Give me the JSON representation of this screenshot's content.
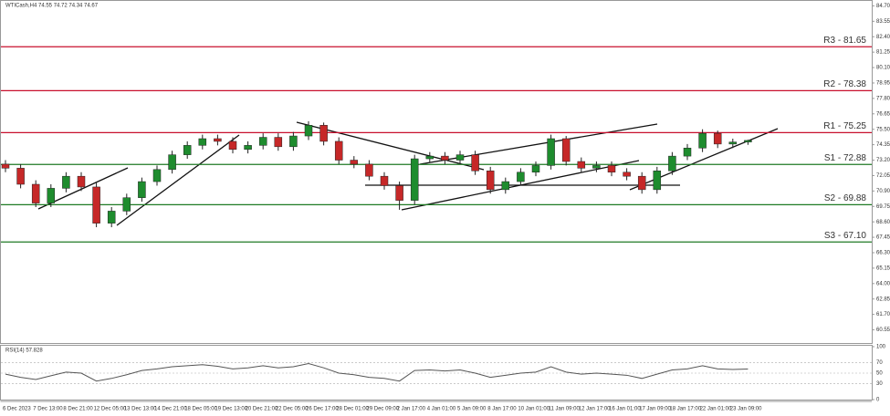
{
  "chart_data": [
    {
      "type": "candlestick",
      "title": "WTICash,H4 74.55 74.72 74.34 74.67",
      "categories": [
        "6 Dec 2023",
        null,
        "7 Dec 13:00",
        null,
        "8 Dec 21:00",
        null,
        "12 Dec 05:00",
        null,
        "13 Dec 13:00",
        null,
        "14 Dec 21:00",
        null,
        "18 Dec 05:00",
        null,
        "19 Dec 13:00",
        null,
        "20 Dec 21:00",
        null,
        "22 Dec 05:00",
        null,
        "26 Dec 17:00",
        null,
        "28 Dec 01:00",
        null,
        "29 Dec 09:00",
        null,
        "2 Jan 17:00",
        null,
        "4 Jan 01:00",
        null,
        "5 Jan 09:00",
        null,
        "8 Jan 17:00",
        null,
        "10 Jan 01:00",
        null,
        "11 Jan 09:00",
        null,
        "12 Jan 17:00",
        null,
        "16 Jan 01:00",
        null,
        "17 Jan 09:00",
        null,
        "18 Jan 17:00",
        null,
        "22 Jan 01:00",
        null,
        "23 Jan 09:00",
        null
      ],
      "open": [
        72.9,
        72.6,
        71.4,
        70.0,
        71.1,
        72.0,
        71.2,
        68.5,
        69.4,
        70.4,
        71.6,
        72.5,
        73.6,
        74.3,
        74.8,
        74.6,
        74.0,
        74.3,
        74.9,
        74.2,
        75.0,
        75.8,
        74.6,
        73.2,
        72.9,
        72.0,
        71.3,
        70.2,
        73.3,
        73.5,
        73.2,
        73.6,
        72.4,
        71.0,
        71.6,
        72.3,
        72.8,
        74.8,
        73.1,
        72.6,
        72.8,
        72.3,
        72.0,
        71.0,
        72.4,
        73.5,
        74.1,
        75.2,
        74.4,
        74.55
      ],
      "high": [
        73.2,
        72.9,
        71.7,
        71.4,
        72.3,
        72.3,
        71.5,
        69.7,
        70.7,
        71.9,
        72.8,
        73.9,
        74.6,
        75.1,
        75.1,
        74.9,
        74.6,
        75.2,
        75.2,
        75.3,
        76.1,
        76.0,
        74.9,
        73.5,
        73.2,
        72.3,
        71.6,
        73.6,
        73.8,
        73.8,
        73.9,
        73.9,
        72.7,
        71.9,
        72.6,
        73.1,
        75.1,
        75.0,
        73.4,
        73.1,
        73.1,
        72.6,
        72.3,
        72.7,
        73.8,
        74.4,
        75.5,
        75.4,
        74.8,
        74.72
      ],
      "low": [
        72.3,
        71.1,
        69.7,
        69.7,
        70.8,
        70.9,
        68.2,
        68.2,
        69.1,
        70.1,
        71.3,
        72.2,
        73.3,
        74.0,
        74.3,
        73.7,
        73.7,
        74.0,
        73.9,
        73.9,
        74.7,
        74.3,
        72.9,
        72.6,
        71.7,
        71.0,
        69.5,
        69.9,
        73.0,
        72.9,
        72.9,
        72.1,
        70.7,
        70.7,
        71.3,
        72.0,
        72.5,
        72.8,
        72.3,
        72.3,
        72.0,
        71.7,
        70.7,
        70.7,
        72.1,
        73.2,
        73.8,
        74.1,
        74.1,
        74.34
      ],
      "close": [
        72.6,
        71.4,
        70.0,
        71.1,
        72.0,
        71.2,
        68.5,
        69.4,
        70.4,
        71.6,
        72.5,
        73.6,
        74.3,
        74.8,
        74.6,
        74.0,
        74.3,
        74.9,
        74.2,
        75.0,
        75.8,
        74.6,
        73.2,
        72.9,
        72.0,
        71.3,
        70.2,
        73.3,
        73.5,
        73.2,
        73.6,
        72.4,
        71.0,
        71.6,
        72.3,
        72.8,
        74.8,
        73.1,
        72.6,
        72.8,
        72.3,
        72.0,
        71.0,
        72.4,
        73.5,
        74.1,
        75.2,
        74.4,
        74.55,
        74.67
      ],
      "up_color": "#1e8c2e",
      "down_color": "#c62828",
      "ylim": [
        59.5,
        85.0
      ],
      "yticks": [
        {
          "value": 60.55,
          "label": "60.55"
        },
        {
          "value": 61.7,
          "label": "61.70"
        },
        {
          "value": 62.85,
          "label": "62.85"
        },
        {
          "value": 64.0,
          "label": "64.00"
        },
        {
          "value": 65.15,
          "label": "65.15"
        },
        {
          "value": 66.3,
          "label": "66.30"
        },
        {
          "value": 67.45,
          "label": "67.45"
        },
        {
          "value": 68.6,
          "label": "68.60"
        },
        {
          "value": 69.75,
          "label": "69.75"
        },
        {
          "value": 70.9,
          "label": "70.90"
        },
        {
          "value": 72.05,
          "label": "72.05"
        },
        {
          "value": 73.2,
          "label": "73.20"
        },
        {
          "value": 74.35,
          "label": "74.35"
        },
        {
          "value": 75.5,
          "label": "75.50"
        },
        {
          "value": 76.65,
          "label": "76.65"
        },
        {
          "value": 77.8,
          "label": "77.80"
        },
        {
          "value": 78.95,
          "label": "78.95"
        },
        {
          "value": 80.1,
          "label": "80.10"
        },
        {
          "value": 81.25,
          "label": "81.25"
        },
        {
          "value": 82.4,
          "label": "82.40"
        },
        {
          "value": 83.55,
          "label": "83.55"
        },
        {
          "value": 84.7,
          "label": "84.70"
        }
      ],
      "levels": [
        {
          "label": "R3 - 81.65",
          "value": 81.65,
          "color": "#c8102e"
        },
        {
          "label": "R2 - 78.38",
          "value": 78.38,
          "color": "#c8102e"
        },
        {
          "label": "R1 - 75.25",
          "value": 75.25,
          "color": "#c8102e"
        },
        {
          "label": "S1 - 72.88",
          "value": 72.88,
          "color": "#1f7a24"
        },
        {
          "label": "S2 - 69.88",
          "value": 69.88,
          "color": "#1f7a24"
        },
        {
          "label": "S3 - 67.10",
          "value": 67.1,
          "color": "#1f7a24"
        }
      ]
    },
    {
      "type": "line",
      "title": "RSI(14) 57.828",
      "values": [
        48,
        42,
        38,
        45,
        52,
        50,
        35,
        40,
        47,
        55,
        58,
        62,
        64,
        66,
        63,
        58,
        60,
        64,
        60,
        62,
        68,
        60,
        50,
        47,
        42,
        40,
        35,
        55,
        56,
        54,
        56,
        50,
        42,
        46,
        50,
        52,
        62,
        52,
        48,
        50,
        48,
        46,
        40,
        48,
        56,
        58,
        64,
        58,
        57,
        57.83
      ],
      "color": "#555555",
      "ylim": [
        0,
        100
      ],
      "yticks": [
        0,
        30,
        50,
        70,
        100
      ],
      "grid": true
    }
  ]
}
